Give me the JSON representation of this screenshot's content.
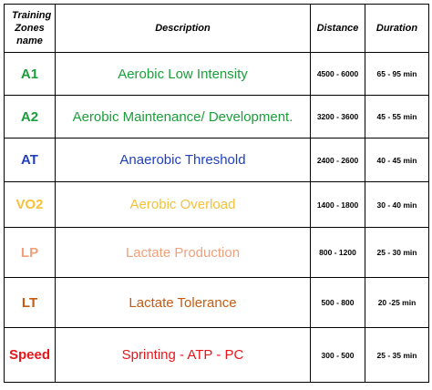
{
  "table": {
    "header": [
      "Training Zones name",
      "Description",
      "Distance",
      "Duration"
    ],
    "rows": [
      [
        "A1",
        "Aerobic Low Intensity",
        "4500 - 6000",
        "65 - 95 min"
      ],
      [
        "A2",
        "Aerobic Maintenance/ Development.",
        "3200 - 3600",
        "45 - 55 min"
      ],
      [
        "AT",
        "Anaerobic Threshold",
        "2400 - 2600",
        "40 - 45 min"
      ],
      [
        "VO2",
        "Aerobic Overload",
        "1400 - 1800",
        "30 - 40 min"
      ],
      [
        "LP",
        "Lactate Production",
        "800 - 1200",
        "25 - 30 min"
      ],
      [
        "LT",
        "Lactate Tolerance",
        "500 - 800",
        "20 -25 min"
      ],
      [
        "Speed",
        "Sprinting - ATP - PC",
        "300 - 500",
        "25 - 35 min"
      ]
    ]
  }
}
